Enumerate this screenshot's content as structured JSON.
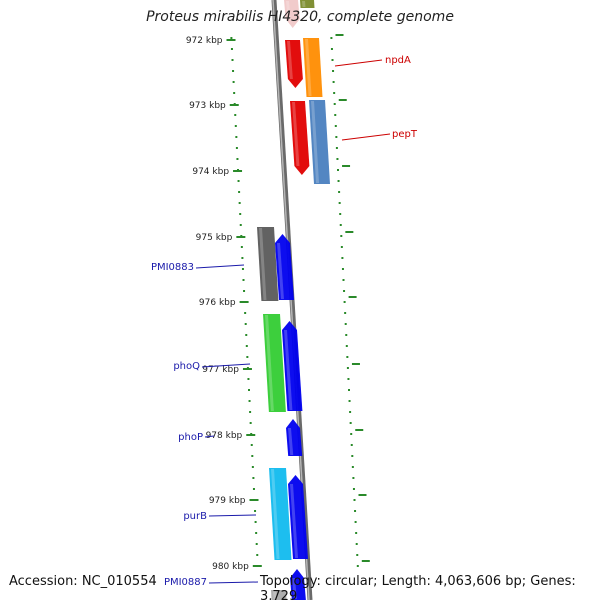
{
  "title": "Proteus mirabilis HI4320, complete genome",
  "footer": {
    "accession": "Accession: NC_010554",
    "info": "Topology: circular; Length: 4,063,606 bp; Genes: 3,729"
  },
  "colors": {
    "backbone": "#8a8a8a",
    "tick": "#2a8a2a",
    "label_red": "#cc0000",
    "label_blue": "#1a1aaa"
  },
  "ticks": [
    "972 kbp",
    "973 kbp",
    "974 kbp",
    "975 kbp",
    "976 kbp",
    "977 kbp",
    "978 kbp",
    "979 kbp",
    "980 kbp"
  ],
  "genes": [
    {
      "name": "",
      "color": "#f0c8c8"
    },
    {
      "name": "",
      "color": "#7a8a2a"
    },
    {
      "name": "npdA",
      "color": "#ff8c00",
      "label_color": "#cc0000"
    },
    {
      "name": "",
      "color": "#e00000"
    },
    {
      "name": "pepT",
      "color": "#4a7fbf",
      "label_color": "#cc0000"
    },
    {
      "name": "",
      "color": "#e00000"
    },
    {
      "name": "PMI0883",
      "color": "#5a5a5a",
      "label_color": "#1a1aaa"
    },
    {
      "name": "",
      "color": "#0000ee"
    },
    {
      "name": "phoQ",
      "color": "#33cc33",
      "label_color": "#1a1aaa"
    },
    {
      "name": "",
      "color": "#0000ee"
    },
    {
      "name": "phoP",
      "color": "#0000ee",
      "label_color": "#1a1aaa"
    },
    {
      "name": "purB",
      "color": "#11bbee",
      "label_color": "#1a1aaa"
    },
    {
      "name": "",
      "color": "#0000ee"
    },
    {
      "name": "PMI0887",
      "color": "#aaaaaa",
      "label_color": "#1a1aaa"
    },
    {
      "name": "",
      "color": "#0000ee"
    }
  ]
}
